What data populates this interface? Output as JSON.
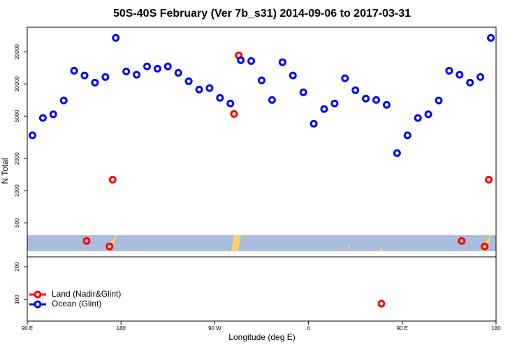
{
  "chart_data": [
    {
      "type": "scatter",
      "title": "50S-40S February (Ver 7b_s31)   2014-09-06 to 2017-03-31",
      "y_label": "N Total",
      "log_scale": true,
      "xlim": [
        90,
        540
      ],
      "ylim": [
        240,
        34000
      ],
      "yticks": [
        500,
        1000,
        2000,
        5000,
        10000,
        20000
      ],
      "series": [
        {
          "name": "Land (Nadir&Glint)",
          "color": "#ff0000",
          "x": [
            147,
            169,
            172,
            288.5,
            293,
            507,
            529,
            533
          ],
          "values": [
            338,
            300,
            1270,
            5240,
            18500,
            338,
            300,
            1270
          ]
        },
        {
          "name": "Ocean (Glint)",
          "color": "#0000ff",
          "x": [
            95,
            105,
            115,
            125,
            135,
            145,
            155,
            165,
            175,
            185,
            195,
            205,
            215,
            225,
            235,
            245,
            255,
            265,
            275,
            285,
            295,
            305,
            315,
            325,
            335,
            345,
            355,
            365,
            375,
            385,
            395,
            405,
            415,
            425,
            435,
            445,
            455,
            465,
            475,
            485,
            495,
            505,
            515,
            525,
            535
          ],
          "values": [
            3300,
            4800,
            5200,
            7000,
            13300,
            12000,
            10300,
            11600,
            27000,
            13100,
            12200,
            14600,
            13900,
            14600,
            12700,
            10600,
            8870,
            9140,
            7400,
            6560,
            16700,
            16400,
            10800,
            7080,
            16000,
            12000,
            8350,
            4240,
            5820,
            6560,
            11300,
            8730,
            7290,
            7080,
            6370,
            2250,
            3300,
            4800,
            5200,
            7000,
            13300,
            12200,
            10300,
            11600,
            27000
          ]
        }
      ]
    },
    {
      "type": "scatter",
      "x_label": "Longitude (deg E)",
      "legend": "lower left",
      "xlim": [
        90,
        540
      ],
      "ylim": [
        34,
        230
      ],
      "yticks": [
        100,
        200
      ],
      "xticks": [
        {
          "value": 90,
          "label": "90 E"
        },
        180,
        {
          "value": 270,
          "label": "90 W"
        },
        {
          "value": 360,
          "label": "0"
        },
        {
          "value": 450,
          "label": "90 E"
        },
        {
          "value": 540,
          "label": "180"
        }
      ],
      "series": [
        {
          "name": "Land (Nadir&Glint)",
          "color": "#ff0000",
          "x": [
            430
          ],
          "values": [
            87
          ]
        },
        {
          "name": "Ocean (Glint)",
          "color": "#0000ff",
          "x": [],
          "values": []
        }
      ]
    }
  ]
}
